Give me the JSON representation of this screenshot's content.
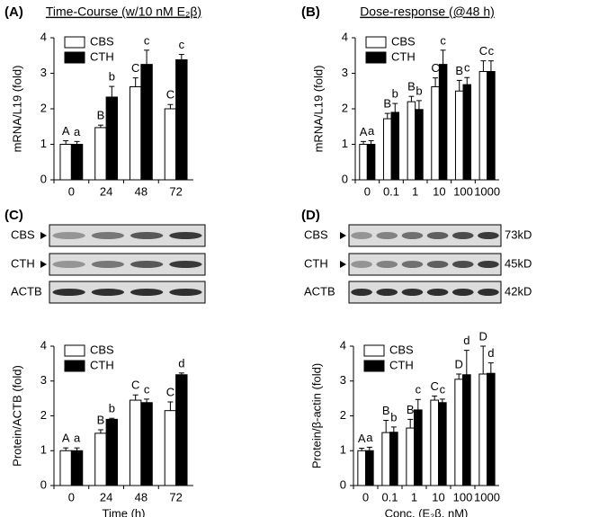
{
  "chart_data": [
    {
      "type": "bar",
      "panel": "(A)",
      "title": "Time-Course (w/10 nM E₂β)",
      "ylabel": "mRNA/L19 (fold)",
      "categories": [
        "0",
        "24",
        "48",
        "72"
      ],
      "series": [
        {
          "name": "CBS",
          "color": "#ffffff",
          "values": [
            1.0,
            1.47,
            2.62,
            2.0
          ],
          "errors": [
            0.1,
            0.07,
            0.25,
            0.12
          ],
          "letters": [
            "A",
            "B",
            "C",
            "C"
          ]
        },
        {
          "name": "CTH",
          "color": "#000000",
          "values": [
            1.0,
            2.33,
            3.25,
            3.38
          ],
          "errors": [
            0.08,
            0.3,
            0.4,
            0.15
          ],
          "letters": [
            "a",
            "b",
            "c",
            "c"
          ]
        }
      ],
      "ylim": [
        0,
        4
      ],
      "yticks": [
        0,
        1,
        2,
        3,
        4
      ],
      "legend": "upper left"
    },
    {
      "type": "bar",
      "panel": "(B)",
      "title": "Dose-response (@48 h)",
      "ylabel": "mRNA/L19 (fold)",
      "categories": [
        "0",
        "0.1",
        "1",
        "10",
        "100",
        "1000"
      ],
      "series": [
        {
          "name": "CBS",
          "color": "#ffffff",
          "values": [
            1.0,
            1.72,
            2.2,
            2.62,
            2.5,
            3.05
          ],
          "errors": [
            0.08,
            0.15,
            0.15,
            0.25,
            0.3,
            0.3
          ],
          "letters": [
            "A",
            "B",
            "B",
            "C",
            "B",
            "C"
          ]
        },
        {
          "name": "CTH",
          "color": "#000000",
          "values": [
            1.0,
            1.9,
            1.98,
            3.25,
            2.68,
            3.05
          ],
          "errors": [
            0.1,
            0.25,
            0.25,
            0.4,
            0.2,
            0.3
          ],
          "letters": [
            "a",
            "b",
            "b",
            "c",
            "c",
            "c"
          ]
        }
      ],
      "ylim": [
        0,
        4
      ],
      "yticks": [
        0,
        1,
        2,
        3,
        4
      ],
      "legend": "upper left"
    },
    {
      "type": "bar",
      "panel": "(C)",
      "ylabel": "Protein/ACTB (fold)",
      "xlabel": "Time (h)",
      "categories": [
        "0",
        "24",
        "48",
        "72"
      ],
      "series": [
        {
          "name": "CBS",
          "color": "#ffffff",
          "values": [
            1.0,
            1.5,
            2.45,
            2.15
          ],
          "errors": [
            0.08,
            0.1,
            0.15,
            0.25
          ],
          "letters": [
            "A",
            "B",
            "C",
            "C"
          ]
        },
        {
          "name": "CTH",
          "color": "#000000",
          "values": [
            1.0,
            1.9,
            2.38,
            3.18
          ],
          "errors": [
            0.08,
            0.03,
            0.1,
            0.05
          ],
          "letters": [
            "a",
            "b",
            "c",
            "d"
          ]
        }
      ],
      "ylim": [
        0,
        4
      ],
      "yticks": [
        0,
        1,
        2,
        3,
        4
      ],
      "legend": "upper left"
    },
    {
      "type": "bar",
      "panel": "(D)",
      "ylabel": "Protein/β-actin (fold)",
      "xlabel": "Conc. (E₂β, nM)",
      "categories": [
        "0",
        "0.1",
        "1",
        "10",
        "100",
        "1000"
      ],
      "series": [
        {
          "name": "CBS",
          "color": "#ffffff",
          "values": [
            1.0,
            1.52,
            1.65,
            2.45,
            3.05,
            3.2
          ],
          "errors": [
            0.07,
            0.35,
            0.25,
            0.12,
            0.15,
            0.8
          ],
          "letters": [
            "A",
            "B",
            "B",
            "C",
            "D",
            "D"
          ]
        },
        {
          "name": "CTH",
          "color": "#000000",
          "values": [
            1.0,
            1.53,
            2.17,
            2.38,
            3.18,
            3.22
          ],
          "errors": [
            0.1,
            0.15,
            0.3,
            0.1,
            0.7,
            0.3
          ],
          "letters": [
            "a",
            "b",
            "c",
            "c",
            "d",
            "d"
          ]
        }
      ],
      "ylim": [
        0,
        4
      ],
      "yticks": [
        0,
        1,
        2,
        3,
        4
      ],
      "legend": "upper left"
    }
  ],
  "blots": [
    {
      "rows": [
        "CBS",
        "CTH",
        "ACTB"
      ]
    },
    {
      "rows": [
        "CBS",
        "CTH",
        "ACTB"
      ],
      "sizes": [
        "73kD",
        "45kD",
        "42kD"
      ]
    }
  ]
}
